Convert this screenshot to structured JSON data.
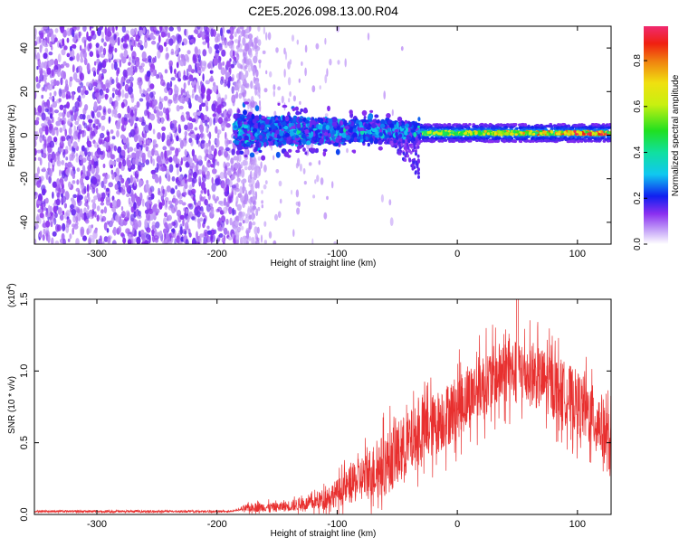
{
  "title": "C2E5.2026.098.13.00.R04",
  "chart_data": [
    {
      "type": "heatmap",
      "title": "C2E5.2026.098.13.00.R04",
      "xlabel": "Height of straight line (km)",
      "ylabel": "Frequency (Hz)",
      "xlim": [
        -352,
        128
      ],
      "ylim": [
        -50,
        50
      ],
      "xticks": [
        -300,
        -200,
        -100,
        0,
        100
      ],
      "yticks": [
        -40,
        -20,
        0,
        20,
        40
      ],
      "colorbar": {
        "label": "Normalized spectral amplitude",
        "range": [
          0.0,
          0.95
        ],
        "ticks": [
          "0.0",
          "0.2",
          "0.4",
          "0.6",
          "0.8"
        ]
      },
      "features": [
        {
          "name": "noise_region",
          "x_range": [
            -352,
            -185
          ],
          "y_range": [
            -50,
            50
          ],
          "amplitude": 0.05
        },
        {
          "name": "turbulent_band",
          "x_range": [
            -185,
            -30
          ],
          "y_center": 2,
          "width": 10,
          "amplitude": 0.25
        },
        {
          "name": "steady_tone",
          "x_range": [
            -30,
            128
          ],
          "y_center": 1,
          "width": 4,
          "amplitude": 0.9
        }
      ]
    },
    {
      "type": "line",
      "xlabel": "Height of straight line (km)",
      "ylabel": "SNR (10 * v/v)",
      "y_multiplier": "(x10",
      "y_multiplier_exp": "4",
      "xlim": [
        -352,
        128
      ],
      "ylim": [
        0,
        1.5
      ],
      "xticks": [
        -300,
        -200,
        -100,
        0,
        100
      ],
      "yticks": [
        "0.0",
        "0.5",
        "1.0",
        "1.5"
      ],
      "series": [
        {
          "color": "#e8302f",
          "envelope": [
            [
              -352,
              0.02
            ],
            [
              -250,
              0.02
            ],
            [
              -190,
              0.02
            ],
            [
              -170,
              0.05
            ],
            [
              -150,
              0.05
            ],
            [
              -120,
              0.08
            ],
            [
              -100,
              0.15
            ],
            [
              -80,
              0.25
            ],
            [
              -60,
              0.35
            ],
            [
              -40,
              0.5
            ],
            [
              -20,
              0.62
            ],
            [
              0,
              0.75
            ],
            [
              20,
              0.9
            ],
            [
              40,
              1.0
            ],
            [
              60,
              0.98
            ],
            [
              80,
              0.9
            ],
            [
              100,
              0.78
            ],
            [
              120,
              0.62
            ],
            [
              128,
              0.45
            ]
          ],
          "noise_amplitude": 0.28,
          "peak": [
            50,
            1.5
          ]
        }
      ]
    }
  ]
}
